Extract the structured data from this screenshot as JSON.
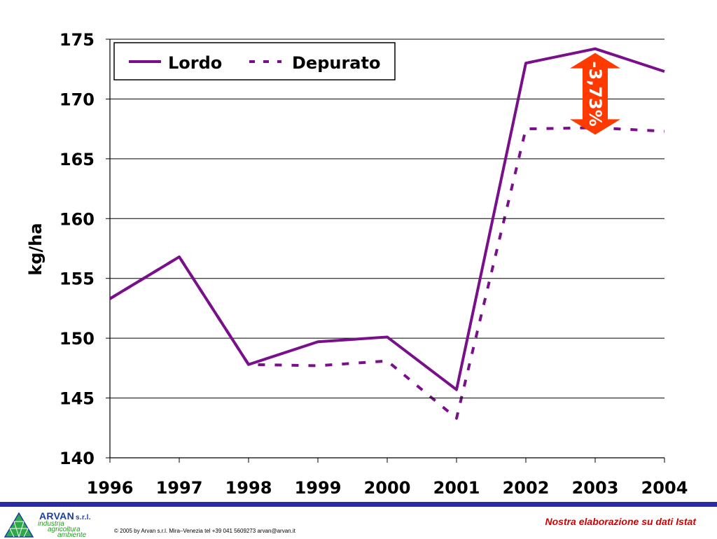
{
  "chart_data": {
    "type": "line",
    "ylabel": "kg/ha",
    "xlabel": "",
    "categories": [
      "1996",
      "1997",
      "1998",
      "1999",
      "2000",
      "2001",
      "2002",
      "2003",
      "2004"
    ],
    "ylim": [
      140,
      175
    ],
    "yticks": [
      140,
      145,
      150,
      155,
      160,
      165,
      170,
      175
    ],
    "grid": true,
    "legend_position": "top-left",
    "series": [
      {
        "name": "Lordo",
        "style": "solid",
        "color": "#7a0f8c",
        "values": [
          153.3,
          156.8,
          147.8,
          149.7,
          150.1,
          145.7,
          173.0,
          174.2,
          172.3
        ]
      },
      {
        "name": "Depurato",
        "style": "dashed",
        "color": "#7a0f8c",
        "values": [
          153.3,
          156.8,
          147.8,
          147.7,
          148.1,
          143.3,
          167.5,
          167.6,
          167.3
        ]
      }
    ],
    "annotation": {
      "text": "-3,73%",
      "color": "#ff3a00",
      "text_color": "#ffffff",
      "category": "2003",
      "from": 174.2,
      "to": 167.6
    }
  },
  "footer": {
    "brand": "ARVAN",
    "brand_suffix": "s.r.l.",
    "tagline": [
      "industria",
      "agricoltura",
      "ambiente"
    ],
    "copyright": "© 2005 by Arvan s.r.l. Mira–Venezia tel +39 041 5609273 arvan@arvan.it",
    "source": "Nostra elaborazione su dati Istat",
    "bar_color": "#2b2ba8"
  }
}
